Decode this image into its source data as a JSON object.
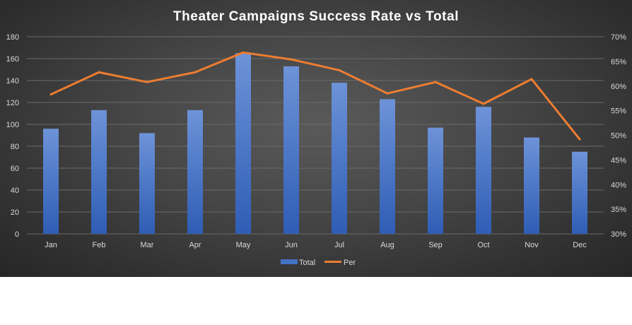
{
  "chart_data": {
    "type": "bar+line",
    "title": "Theater Campaigns  Success Rate vs Total",
    "categories": [
      "Jan",
      "Feb",
      "Mar",
      "Apr",
      "May",
      "Jun",
      "Jul",
      "Aug",
      "Sep",
      "Oct",
      "Nov",
      "Dec"
    ],
    "series": [
      {
        "name": "Total",
        "type": "bar",
        "axis": "left",
        "color": "#4472c4",
        "values": [
          96,
          113,
          92,
          113,
          165,
          153,
          138,
          123,
          97,
          116,
          88,
          75
        ]
      },
      {
        "name": "Per",
        "type": "line",
        "axis": "right",
        "color": "#ed7d31",
        "values": [
          0.583,
          0.628,
          0.608,
          0.628,
          0.668,
          0.654,
          0.632,
          0.585,
          0.608,
          0.564,
          0.614,
          0.492
        ]
      }
    ],
    "y_left": {
      "min": 0,
      "max": 180,
      "step": 20,
      "ticks": [
        "0",
        "20",
        "40",
        "60",
        "80",
        "100",
        "120",
        "140",
        "160",
        "180"
      ]
    },
    "y_right": {
      "min": 0.3,
      "max": 0.7,
      "step": 0.05,
      "ticks": [
        "30%",
        "35%",
        "40%",
        "45%",
        "50%",
        "55%",
        "60%",
        "65%",
        "70%"
      ]
    },
    "grid": true,
    "legend_position": "bottom",
    "background": "#3f3f3f"
  }
}
